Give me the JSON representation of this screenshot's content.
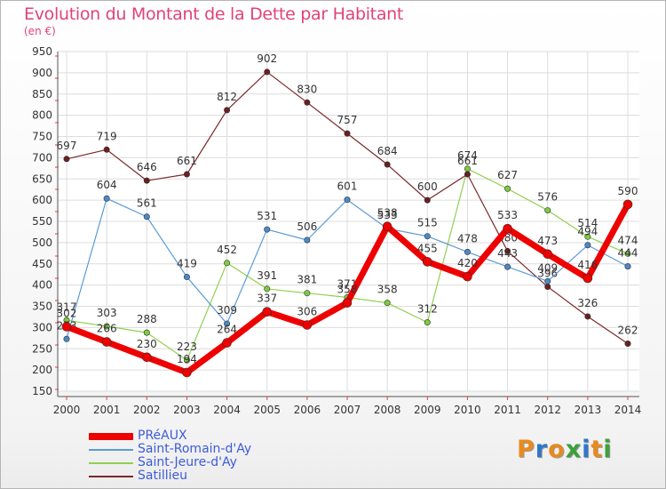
{
  "title": "Evolution du Montant de la Dette par Habitant",
  "unit": "(en €)",
  "logo": {
    "text": "Proxiti",
    "colors": [
      "#e98a1f",
      "#2f76c8",
      "#e98a1f",
      "#3aa23a",
      "#2f76c8",
      "#e98a1f",
      "#3aa23a"
    ]
  },
  "chart_data": {
    "type": "line",
    "x": [
      "2000",
      "2001",
      "2002",
      "2003",
      "2004",
      "2005",
      "2006",
      "2007",
      "2008",
      "2009",
      "2010",
      "2011",
      "2012",
      "2013",
      "2014"
    ],
    "ylim": [
      150,
      950
    ],
    "yticks": [
      150,
      200,
      250,
      300,
      350,
      400,
      450,
      500,
      550,
      600,
      650,
      700,
      750,
      800,
      850,
      900,
      950
    ],
    "grid": true,
    "legend_position": "bottom-left",
    "series": [
      {
        "name": "Saint-Jeure-d'Ay",
        "color": "#8fd14f",
        "point_color": "#7ccc3f",
        "width": 1.2,
        "values": [
          317,
          303,
          288,
          223,
          452,
          391,
          381,
          371,
          358,
          312,
          674,
          627,
          576,
          514,
          474
        ]
      },
      {
        "name": "Satillieu",
        "color": "#7a2a2a",
        "point_color": "#6b1f1f",
        "width": 1.2,
        "values": [
          697,
          719,
          646,
          661,
          812,
          902,
          830,
          757,
          684,
          600,
          661,
          480,
          396,
          326,
          262
        ]
      },
      {
        "name": "Saint-Romain-d'Ay",
        "color": "#5b9bd5",
        "point_color": "#4a8ac8",
        "width": 1.2,
        "values": [
          273,
          604,
          561,
          419,
          309,
          531,
          506,
          601,
          533,
          515,
          478,
          443,
          409,
          494,
          444
        ]
      },
      {
        "name": "PRéAUX",
        "color": "#ee0000",
        "point_color": "#ee0000",
        "width": 7,
        "values": [
          302,
          266,
          230,
          194,
          264,
          337,
          306,
          358,
          538,
          455,
          420,
          533,
          473,
          416,
          590
        ]
      }
    ],
    "legend_order": [
      "PRéAUX",
      "Saint-Romain-d'Ay",
      "Saint-Jeure-d'Ay",
      "Satillieu"
    ]
  }
}
